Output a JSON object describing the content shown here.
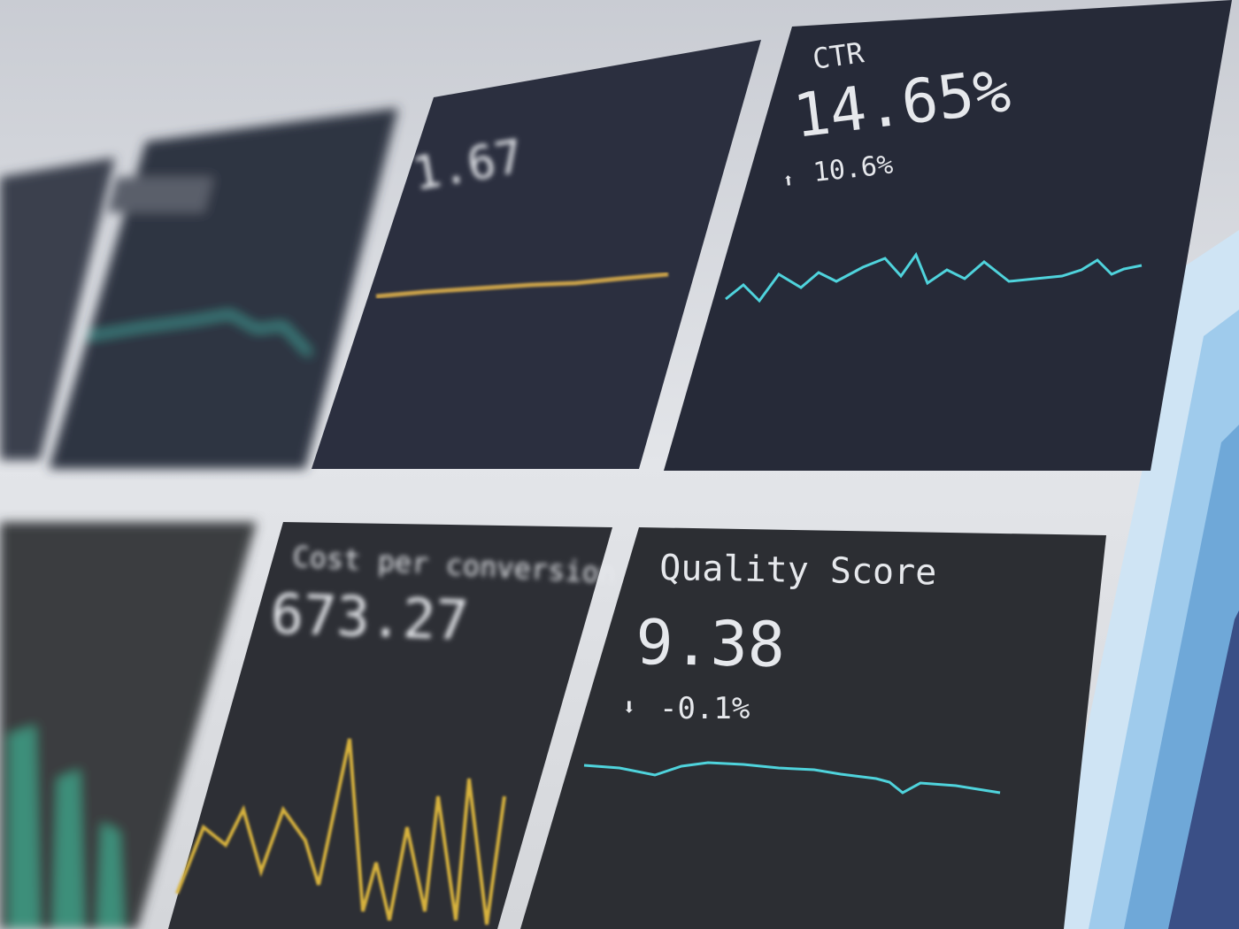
{
  "tiles": {
    "ctr": {
      "label": "CTR",
      "value": "14.65%",
      "change": "10.6%",
      "direction": "up",
      "color": "#4fd3dc"
    },
    "tile_cpc": {
      "value": "1.67",
      "color": "#c9a14a"
    },
    "quality": {
      "label": "Quality Score",
      "value": "9.38",
      "change": "-0.1%",
      "direction": "down",
      "color": "#4fd3dc"
    },
    "cost": {
      "label": "Cost per conversion",
      "value": "673.27",
      "color": "#d6b13c"
    }
  },
  "colors": {
    "tile_bg": "#2b2f3e",
    "screen_bg": "#e4e6ea",
    "accent_blue": "#8fc3ea"
  }
}
